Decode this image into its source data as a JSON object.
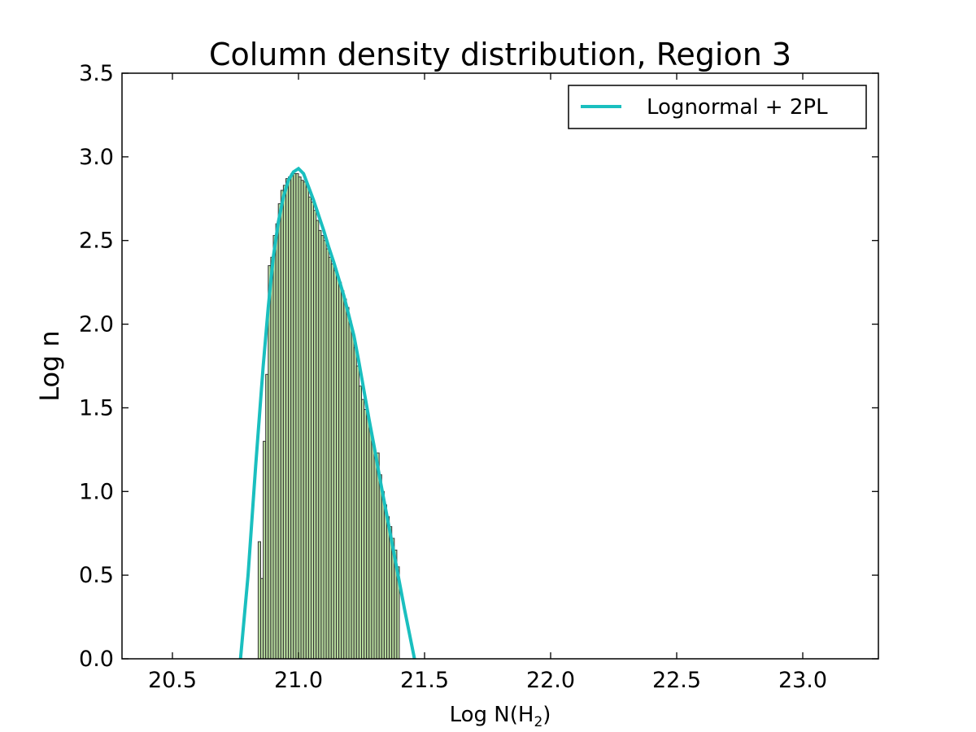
{
  "chart_data": {
    "type": "bar",
    "title": "Column density distribution, Region 3",
    "xlabel_main": "Log N(H",
    "xlabel_sub": "2",
    "xlabel_close": ")",
    "ylabel": "Log n",
    "xlim": [
      20.3,
      23.3
    ],
    "ylim": [
      0.0,
      3.5
    ],
    "xticks": [
      "20.5",
      "21.0",
      "21.5",
      "22.0",
      "22.5",
      "23.0"
    ],
    "xtick_values": [
      20.5,
      21.0,
      21.5,
      22.0,
      22.5,
      23.0
    ],
    "yticks": [
      "0.0",
      "0.5",
      "1.0",
      "1.5",
      "2.0",
      "2.5",
      "3.0",
      "3.5"
    ],
    "ytick_values": [
      0.0,
      0.5,
      1.0,
      1.5,
      2.0,
      2.5,
      3.0,
      3.5
    ],
    "legend": {
      "label": "Lognormal + 2PL",
      "position": "top-right"
    },
    "colors": {
      "bar_fill": "#b5d99c",
      "bar_edge": "#333333",
      "fit_line": "#1abfbf"
    },
    "histogram": {
      "bin_width": 0.01,
      "x": [
        20.84,
        20.85,
        20.86,
        20.87,
        20.88,
        20.89,
        20.9,
        20.91,
        20.92,
        20.93,
        20.94,
        20.95,
        20.96,
        20.97,
        20.98,
        20.99,
        21.0,
        21.01,
        21.02,
        21.03,
        21.04,
        21.05,
        21.06,
        21.07,
        21.08,
        21.09,
        21.1,
        21.11,
        21.12,
        21.13,
        21.14,
        21.15,
        21.16,
        21.17,
        21.18,
        21.19,
        21.2,
        21.21,
        21.22,
        21.23,
        21.24,
        21.25,
        21.26,
        21.27,
        21.28,
        21.29,
        21.3,
        21.31,
        21.32,
        21.33,
        21.34,
        21.35,
        21.36,
        21.37,
        21.38,
        21.39
      ],
      "values": [
        0.7,
        0.48,
        1.3,
        1.7,
        2.35,
        2.4,
        2.53,
        2.6,
        2.72,
        2.8,
        2.83,
        2.87,
        2.88,
        2.9,
        2.9,
        2.9,
        2.88,
        2.86,
        2.85,
        2.82,
        2.76,
        2.73,
        2.68,
        2.62,
        2.56,
        2.53,
        2.5,
        2.45,
        2.4,
        2.36,
        2.32,
        2.28,
        2.25,
        2.2,
        2.15,
        2.1,
        2.02,
        1.95,
        1.86,
        1.75,
        1.63,
        1.55,
        1.49,
        1.45,
        1.38,
        1.3,
        1.22,
        1.23,
        1.1,
        1.0,
        0.92,
        0.85,
        0.79,
        0.72,
        0.65,
        0.55
      ]
    },
    "series": [
      {
        "name": "Lognormal + 2PL",
        "type": "line",
        "x": [
          20.77,
          20.8,
          20.83,
          20.86,
          20.88,
          20.9,
          20.92,
          20.94,
          20.96,
          20.98,
          21.0,
          21.02,
          21.04,
          21.06,
          21.08,
          21.1,
          21.12,
          21.14,
          21.16,
          21.18,
          21.2,
          21.22,
          21.24,
          21.26,
          21.28,
          21.3,
          21.32,
          21.34,
          21.36,
          21.38,
          21.4,
          21.42,
          21.44,
          21.46
        ],
        "y": [
          0.0,
          0.5,
          1.15,
          1.75,
          2.1,
          2.4,
          2.61,
          2.76,
          2.86,
          2.91,
          2.93,
          2.9,
          2.82,
          2.74,
          2.65,
          2.56,
          2.46,
          2.37,
          2.27,
          2.17,
          2.05,
          1.93,
          1.77,
          1.6,
          1.43,
          1.27,
          1.1,
          0.94,
          0.78,
          0.62,
          0.46,
          0.3,
          0.15,
          0.0
        ]
      }
    ]
  }
}
